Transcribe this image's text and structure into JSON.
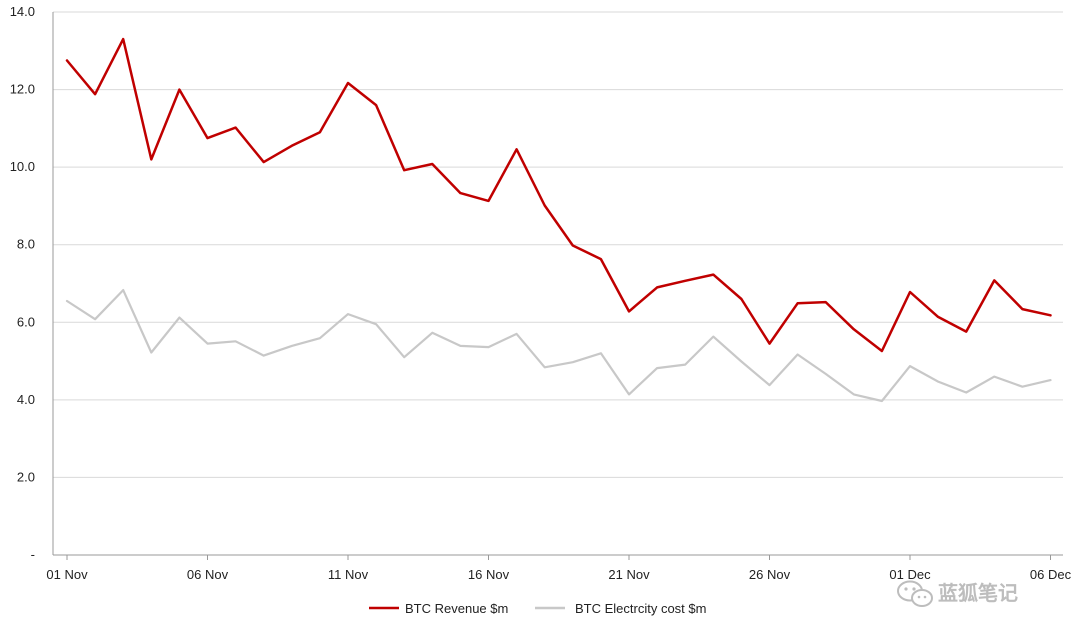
{
  "chart_data": {
    "type": "line",
    "title": "",
    "xlabel": "",
    "ylabel": "",
    "x_start": "01 Nov",
    "x": [
      "01 Nov",
      "02 Nov",
      "03 Nov",
      "04 Nov",
      "05 Nov",
      "06 Nov",
      "07 Nov",
      "08 Nov",
      "09 Nov",
      "10 Nov",
      "11 Nov",
      "12 Nov",
      "13 Nov",
      "14 Nov",
      "15 Nov",
      "16 Nov",
      "17 Nov",
      "18 Nov",
      "19 Nov",
      "20 Nov",
      "21 Nov",
      "22 Nov",
      "23 Nov",
      "24 Nov",
      "25 Nov",
      "26 Nov",
      "27 Nov",
      "28 Nov",
      "29 Nov",
      "30 Nov",
      "01 Dec",
      "02 Dec",
      "03 Dec",
      "04 Dec",
      "05 Dec",
      "06 Dec"
    ],
    "x_tick_labels": [
      "01 Nov",
      "06 Nov",
      "11 Nov",
      "16 Nov",
      "21 Nov",
      "26 Nov",
      "01 Dec",
      "06 Dec"
    ],
    "ylim": [
      0,
      14
    ],
    "y_tick_labels": [
      "-",
      "2.0",
      "4.0",
      "6.0",
      "8.0",
      "10.0",
      "12.0",
      "14.0"
    ],
    "grid": "horizontal",
    "legend_position": "bottom",
    "series": [
      {
        "name": "BTC Revenue $m",
        "color": "#c00000",
        "values": [
          12.75,
          11.88,
          13.3,
          10.2,
          12.0,
          10.75,
          11.02,
          10.13,
          10.55,
          10.9,
          12.17,
          11.6,
          9.92,
          10.08,
          9.33,
          9.13,
          10.46,
          9.01,
          7.98,
          7.63,
          6.28,
          6.9,
          7.07,
          7.23,
          6.6,
          5.45,
          6.49,
          6.52,
          5.82,
          5.26,
          6.78,
          6.14,
          5.76,
          7.08,
          6.34,
          6.18
        ]
      },
      {
        "name": "BTC Electrcity cost $m",
        "color": "#c8c8c8",
        "values": [
          6.55,
          6.08,
          6.83,
          5.22,
          6.12,
          5.45,
          5.51,
          5.14,
          5.39,
          5.59,
          6.21,
          5.95,
          5.1,
          5.73,
          5.39,
          5.36,
          5.7,
          4.84,
          4.97,
          5.2,
          4.14,
          4.82,
          4.91,
          5.63,
          4.99,
          4.38,
          5.17,
          4.67,
          4.14,
          3.97,
          4.87,
          4.47,
          4.19,
          4.6,
          4.34,
          4.51
        ]
      }
    ]
  },
  "watermark": {
    "text": "蓝狐笔记",
    "icon": "wechat-icon"
  }
}
